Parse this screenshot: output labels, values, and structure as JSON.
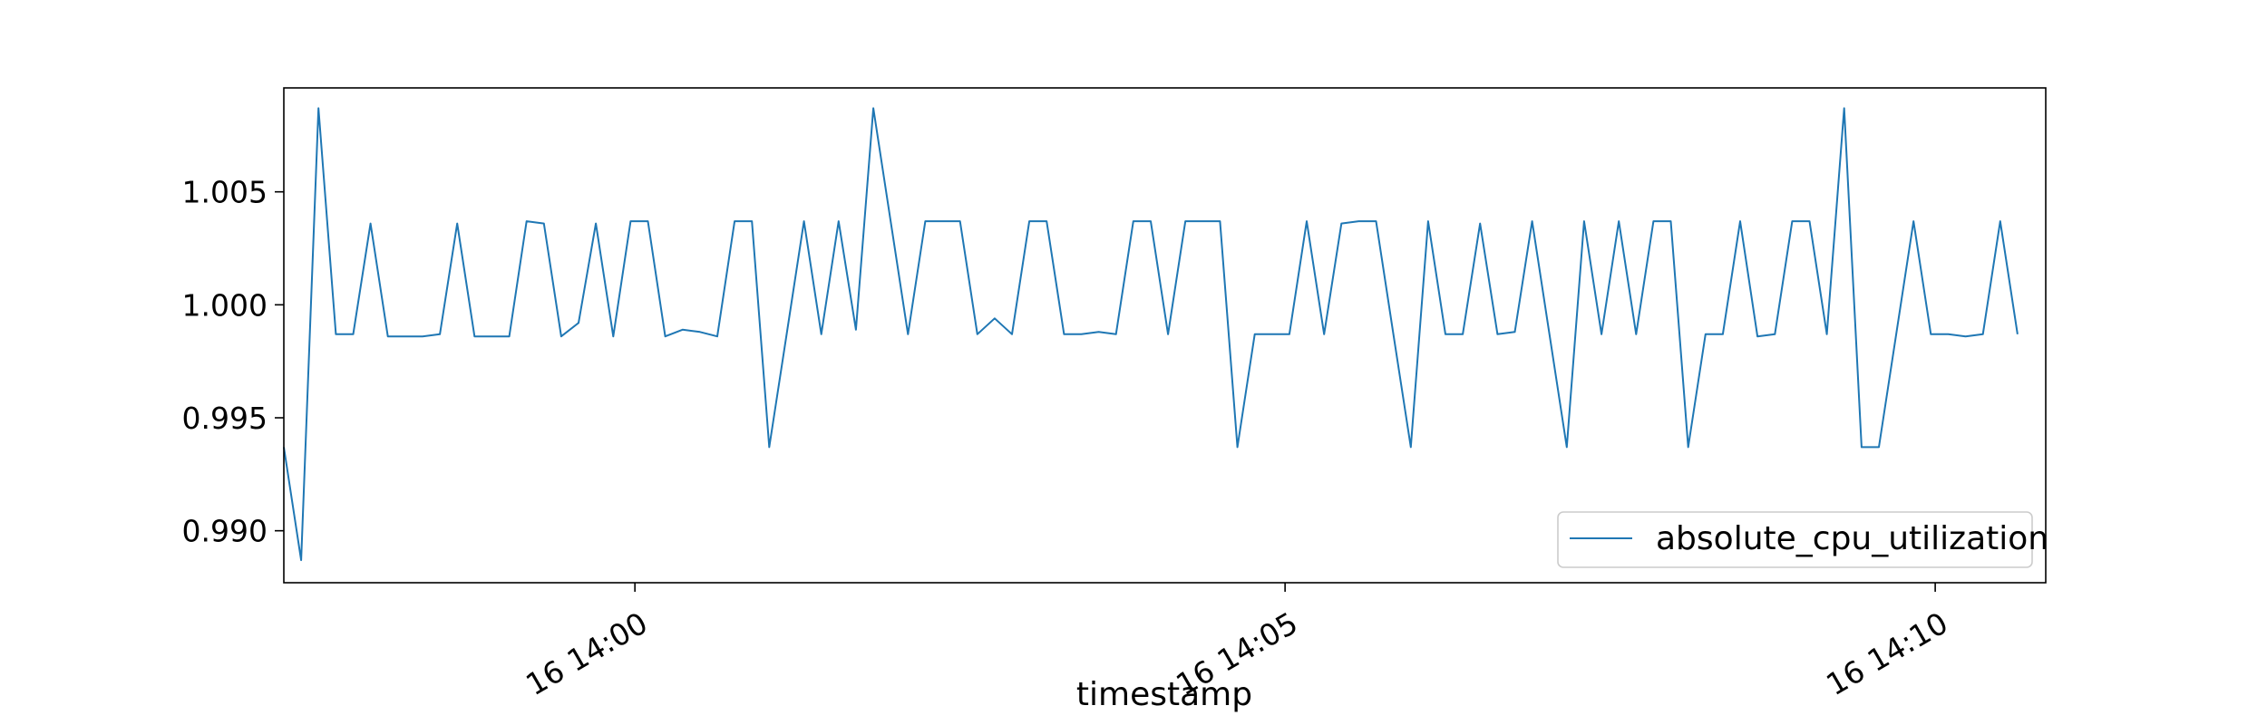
{
  "chart_data": {
    "type": "line",
    "xlabel": "timestamp",
    "ylabel": "",
    "title": "",
    "x_ticks": [
      "16 14:00",
      "16 14:05",
      "16 14:10"
    ],
    "x_tick_minutes": [
      0,
      5,
      10
    ],
    "x_range_minutes": [
      -2.7,
      10.85
    ],
    "x_interval_seconds": 8,
    "y_ticks": [
      "0.990",
      "0.995",
      "1.000",
      "1.005"
    ],
    "y_tick_values": [
      0.99,
      0.995,
      1.0,
      1.005
    ],
    "ylim": [
      0.9877,
      1.0096
    ],
    "grid": false,
    "legend_position": "lower right",
    "line_color": "#1f77b4",
    "series": [
      {
        "name": "absolute_cpu_utilization",
        "values": [
          0.9937,
          0.9887,
          1.0087,
          0.9987,
          0.9987,
          1.0036,
          0.9986,
          0.9986,
          0.9986,
          0.9987,
          1.0036,
          0.9986,
          0.9986,
          0.9986,
          1.0037,
          1.0036,
          0.9986,
          0.9992,
          1.0036,
          0.9986,
          1.0037,
          1.0037,
          0.9986,
          0.9989,
          0.9988,
          0.9986,
          1.0037,
          1.0037,
          0.9937,
          0.9987,
          1.0037,
          0.9987,
          1.0037,
          0.9989,
          1.0087,
          1.0037,
          0.9987,
          1.0037,
          1.0037,
          1.0037,
          0.9987,
          0.9994,
          0.9987,
          1.0037,
          1.0037,
          0.9987,
          0.9987,
          0.9988,
          0.9987,
          1.0037,
          1.0037,
          0.9987,
          1.0037,
          1.0037,
          1.0037,
          0.9937,
          0.9987,
          0.9987,
          0.9987,
          1.0037,
          0.9987,
          1.0036,
          1.0037,
          1.0037,
          0.9987,
          0.9937,
          1.0037,
          0.9987,
          0.9987,
          1.0036,
          0.9987,
          0.9988,
          1.0037,
          0.9987,
          0.9937,
          1.0037,
          0.9987,
          1.0037,
          0.9987,
          1.0037,
          1.0037,
          0.9937,
          0.9987,
          0.9987,
          1.0037,
          0.9986,
          0.9987,
          1.0037,
          1.0037,
          0.9987,
          1.0087,
          0.9937,
          0.9937,
          0.9987,
          1.0037,
          0.9987,
          0.9987,
          0.9986,
          0.9987,
          1.0037,
          0.9987
        ]
      }
    ]
  }
}
